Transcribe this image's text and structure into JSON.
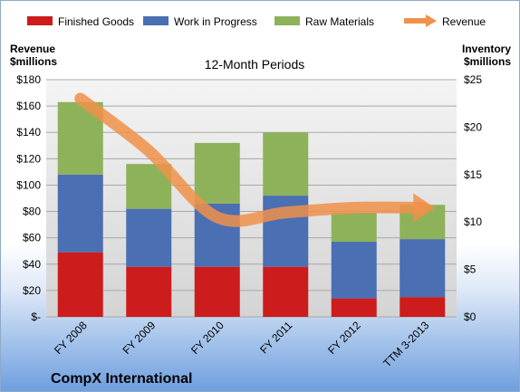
{
  "company": "CompX International",
  "chart_data": {
    "type": "bar",
    "stacked": true,
    "title": "12-Month Periods",
    "categories": [
      "FY 2008",
      "FY 2009",
      "FY 2010",
      "FY 2011",
      "FY 2012",
      "TTM 3-2013"
    ],
    "y_left": {
      "label_line1": "Revenue",
      "label_line2": "$millions",
      "ticks": [
        "$180",
        "$160",
        "$140",
        "$120",
        "$100",
        "$80",
        "$60",
        "$40",
        "$20",
        "$-"
      ],
      "ylim": [
        0,
        180
      ]
    },
    "y_right": {
      "label_line1": "Inventory",
      "label_line2": "$millions",
      "ticks": [
        "$25",
        "$20",
        "$15",
        "$10",
        "$5",
        "$0"
      ],
      "ylim": [
        0,
        25
      ]
    },
    "series": [
      {
        "name": "Finished Goods",
        "axis": "left",
        "color": "#cc1c1c",
        "values": [
          49,
          38,
          38,
          38,
          14,
          15
        ]
      },
      {
        "name": "Work in Progress",
        "axis": "left",
        "color": "#4a6fb3",
        "values": [
          59,
          44,
          48,
          54,
          43,
          44
        ]
      },
      {
        "name": "Raw Materials",
        "axis": "left",
        "color": "#8db25a",
        "values": [
          55,
          34,
          46,
          48,
          22,
          26
        ]
      },
      {
        "name": "Revenue",
        "axis": "right",
        "type": "line",
        "color": "#f0914a",
        "values": [
          23,
          17.5,
          10.5,
          11,
          11.5,
          11.5
        ]
      }
    ],
    "grid": true,
    "legend": "top"
  }
}
